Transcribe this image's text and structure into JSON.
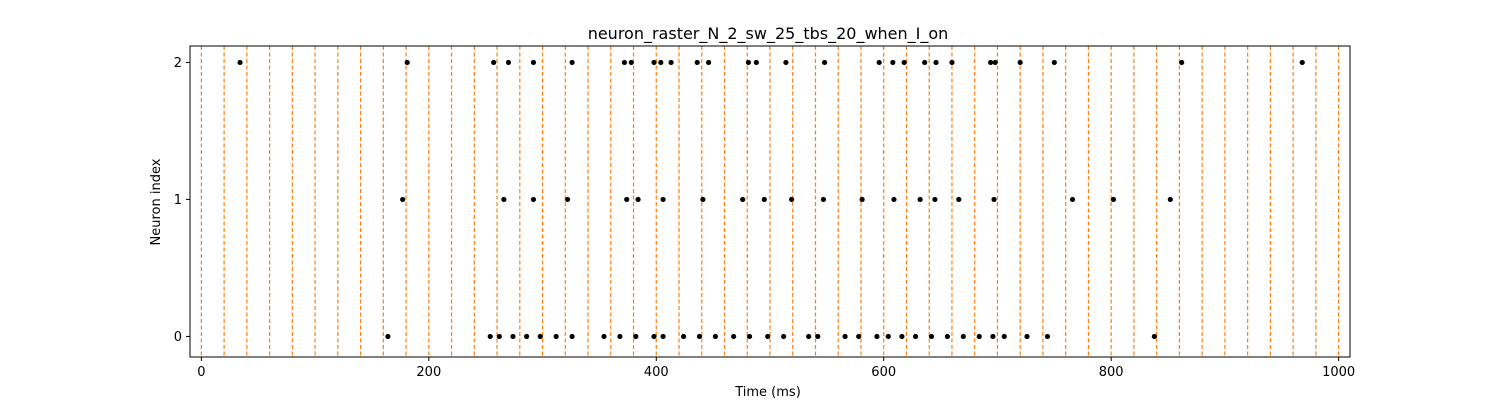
{
  "chart_data": {
    "type": "scatter",
    "title": "neuron_raster_N_2_sw_25_tbs_20_when_I_on",
    "xlabel": "Time (ms)",
    "ylabel": "Neuron index",
    "xlim": [
      -10,
      1010
    ],
    "ylim": [
      -0.15,
      2.12
    ],
    "xticks": [
      0,
      200,
      400,
      600,
      800,
      1000
    ],
    "yticks": [
      0,
      1,
      2
    ],
    "grid": false,
    "colors": {
      "spikes": "#000000",
      "bin_lines": "#ff7f0e"
    },
    "bin_lines": {
      "style": "dashed",
      "x": [
        0,
        20,
        40,
        60,
        80,
        100,
        120,
        140,
        160,
        180,
        200,
        220,
        240,
        260,
        280,
        300,
        320,
        340,
        360,
        380,
        400,
        420,
        440,
        460,
        480,
        500,
        520,
        540,
        560,
        580,
        600,
        620,
        640,
        660,
        680,
        700,
        720,
        740,
        760,
        780,
        800,
        820,
        840,
        860,
        880,
        900,
        920,
        940,
        960,
        980,
        1000
      ]
    },
    "series": [
      {
        "neuron": 0,
        "x": [
          164,
          254,
          262,
          274,
          286,
          298,
          312,
          326,
          354,
          368,
          382,
          398,
          406,
          424,
          438,
          452,
          468,
          482,
          498,
          512,
          534,
          542,
          566,
          578,
          594,
          604,
          616,
          628,
          642,
          656,
          670,
          684,
          696,
          706,
          726,
          744,
          838
        ]
      },
      {
        "neuron": 1,
        "x": [
          177,
          266,
          292,
          322,
          374,
          384,
          406,
          441,
          476,
          495,
          519,
          547,
          581,
          609,
          632,
          645,
          666,
          697,
          766,
          802,
          852
        ]
      },
      {
        "neuron": 2,
        "x": [
          34,
          181,
          257,
          270,
          292,
          326,
          372,
          378,
          398,
          404,
          413,
          436,
          446,
          481,
          488,
          514,
          548,
          596,
          608,
          618,
          636,
          646,
          660,
          694,
          698,
          720,
          750,
          862,
          968
        ]
      }
    ]
  }
}
